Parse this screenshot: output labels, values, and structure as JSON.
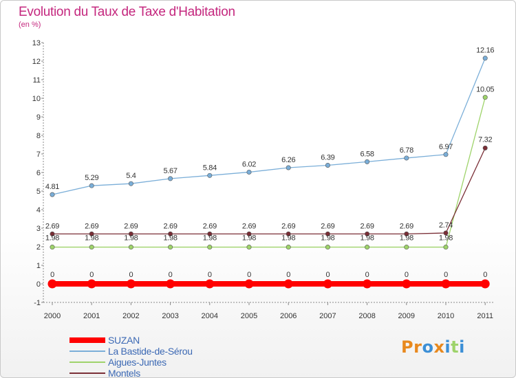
{
  "header": {
    "title": "Evolution du Taux de Taxe d'Habitation",
    "subtitle": "(en %)"
  },
  "chart_data": {
    "type": "line",
    "title": "Evolution du Taux de Taxe d'Habitation",
    "ylabel": "(en %)",
    "xlabel": "",
    "x": [
      "2000",
      "2001",
      "2002",
      "2003",
      "2004",
      "2005",
      "2006",
      "2007",
      "2008",
      "2009",
      "2010",
      "2011"
    ],
    "ylim": [
      -1,
      13
    ],
    "yticks": [
      -1,
      0,
      1,
      2,
      3,
      4,
      5,
      6,
      7,
      8,
      9,
      10,
      11,
      12,
      13
    ],
    "grid": false,
    "legend_position": "bottom-left",
    "series": [
      {
        "name": "SUZAN",
        "color": "#ff0000",
        "values": [
          0,
          0,
          0,
          0,
          0,
          0,
          0,
          0,
          0,
          0,
          0,
          0
        ],
        "labels": [
          "0",
          "0",
          "0",
          "0",
          "0",
          "0",
          "0",
          "0",
          "0",
          "0",
          "0",
          "0"
        ]
      },
      {
        "name": "La Bastide-de-Sérou",
        "color": "#7aaed8",
        "values": [
          4.81,
          5.29,
          5.4,
          5.67,
          5.84,
          6.02,
          6.26,
          6.39,
          6.58,
          6.78,
          6.97,
          12.16
        ],
        "labels": [
          "4.81",
          "5.29",
          "5.4",
          "5.67",
          "5.84",
          "6.02",
          "6.26",
          "6.39",
          "6.58",
          "6.78",
          "6.97",
          "12.16"
        ]
      },
      {
        "name": "Aigues-Juntes",
        "color": "#9ed36a",
        "values": [
          1.98,
          1.98,
          1.98,
          1.98,
          1.98,
          1.98,
          1.98,
          1.98,
          1.98,
          1.98,
          1.98,
          10.05
        ],
        "labels": [
          "1.98",
          "1.98",
          "1.98",
          "1.98",
          "1.98",
          "1.98",
          "1.98",
          "1.98",
          "1.98",
          "1.98",
          "1.98",
          "10.05"
        ]
      },
      {
        "name": "Montels",
        "color": "#7a2e36",
        "values": [
          2.69,
          2.69,
          2.69,
          2.69,
          2.69,
          2.69,
          2.69,
          2.69,
          2.69,
          2.69,
          2.74,
          7.32
        ],
        "labels": [
          "2.69",
          "2.69",
          "2.69",
          "2.69",
          "2.69",
          "2.69",
          "2.69",
          "2.69",
          "2.69",
          "2.69",
          "2.74",
          "7.32"
        ]
      }
    ]
  },
  "logo": {
    "text": "Proxiti",
    "letters": [
      {
        "ch": "P",
        "color": "#e8891e"
      },
      {
        "ch": "r",
        "color": "#e8891e"
      },
      {
        "ch": "o",
        "color": "#3c8fd6"
      },
      {
        "ch": "x",
        "color": "#e8891e"
      },
      {
        "ch": "i",
        "color": "#3c8fd6"
      },
      {
        "ch": "t",
        "color": "#9ed36a"
      },
      {
        "ch": "i",
        "color": "#3c8fd6"
      }
    ]
  }
}
